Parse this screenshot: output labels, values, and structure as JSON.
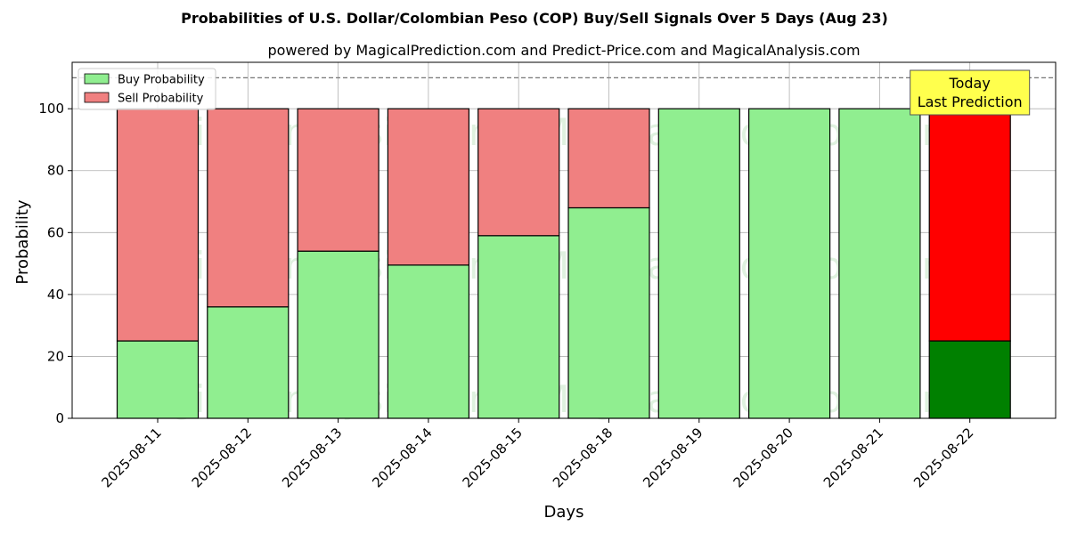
{
  "chart_data": {
    "type": "bar",
    "stacked": true,
    "title": "Probabilities of U.S. Dollar/Colombian Peso (COP) Buy/Sell Signals Over 5 Days (Aug 23)",
    "subtitle": "powered by MagicalPrediction.com and Predict-Price.com and MagicalAnalysis.com",
    "xlabel": "Days",
    "ylabel": "Probability",
    "ylim": [
      0,
      115
    ],
    "yticks": [
      0,
      20,
      40,
      60,
      80,
      100
    ],
    "reference_line": 110,
    "grid": true,
    "legend_position": "top-left",
    "categories": [
      "2025-08-11",
      "2025-08-12",
      "2025-08-13",
      "2025-08-14",
      "2025-08-15",
      "2025-08-18",
      "2025-08-19",
      "2025-08-20",
      "2025-08-21",
      "2025-08-22"
    ],
    "series": [
      {
        "name": "Buy Probability",
        "values": [
          25,
          36,
          54,
          49.5,
          59,
          68,
          100,
          100,
          100,
          25
        ],
        "color": "#90ee90",
        "highlight_color": "#008000"
      },
      {
        "name": "Sell Probability",
        "values": [
          75,
          64,
          46,
          50.5,
          41,
          32,
          0,
          0,
          0,
          75
        ],
        "color": "#f08080",
        "highlight_color": "#ff0000"
      }
    ],
    "highlight_index": 9,
    "annotation": {
      "lines": [
        "Today",
        "Last Prediction"
      ],
      "bg": "#ffff4d"
    },
    "watermarks": [
      "MagicalAnalysis.com",
      "MagicalPrediction.com"
    ]
  }
}
